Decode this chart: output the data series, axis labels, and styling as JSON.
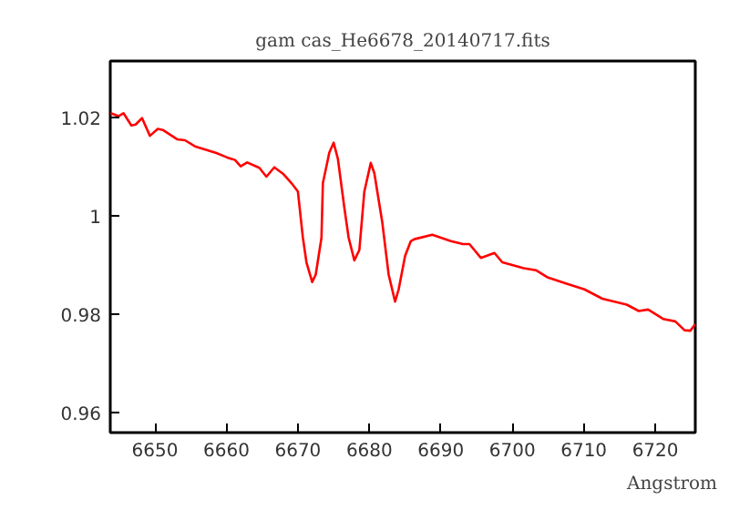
{
  "chart_data": {
    "type": "line",
    "title": "gam cas_He6678_20140717.fits",
    "xlabel": "Angstrom",
    "xlim": [
      6643.75,
      6725.6
    ],
    "ylim": [
      0.956,
      1.0315
    ],
    "xticks": [
      6650,
      6660,
      6670,
      6680,
      6690,
      6700,
      6710,
      6720
    ],
    "yticks": [
      0.96,
      0.98,
      1,
      1.02
    ],
    "grid": false,
    "marker": "none",
    "line_style": "solid",
    "series": [
      {
        "color": "#ff0000",
        "x": [
          6643.8,
          6644.9,
          6645.6,
          6646.7,
          6647.3,
          6648.2,
          6649.3,
          6650.4,
          6651.1,
          6653.1,
          6654.2,
          6655.7,
          6658.6,
          6660.1,
          6661.2,
          6662.0,
          6662.9,
          6664.6,
          6665.6,
          6666.7,
          6668.0,
          6669.1,
          6670.0,
          6670.7,
          6671.2,
          6672.0,
          6672.5,
          6673.3,
          6673.5,
          6674.4,
          6675.0,
          6675.6,
          6676.5,
          6677.1,
          6677.9,
          6678.6,
          6679.3,
          6680.2,
          6680.7,
          6681.8,
          6682.7,
          6683.6,
          6684.1,
          6685.0,
          6685.8,
          6686.3,
          6688.8,
          6691.4,
          6693.1,
          6694.0,
          6695.6,
          6697.5,
          6698.6,
          6701.6,
          6703.3,
          6705.0,
          6707.5,
          6710.1,
          6712.6,
          6716.0,
          6717.7,
          6719.0,
          6721.1,
          6722.8,
          6724.1,
          6724.9,
          6725.6
        ],
        "values": [
          1.0209,
          1.0203,
          1.0209,
          1.0184,
          1.0186,
          1.0199,
          1.0163,
          1.0177,
          1.0175,
          1.0156,
          1.0154,
          1.0141,
          1.0128,
          1.0119,
          1.0114,
          1.0101,
          1.0109,
          1.0098,
          1.008,
          1.0099,
          1.0085,
          1.0067,
          1.005,
          0.9956,
          0.9906,
          0.9866,
          0.9881,
          0.9956,
          1.0067,
          1.0129,
          1.0149,
          1.0116,
          1.0017,
          0.9956,
          0.991,
          0.9931,
          1.005,
          1.0108,
          1.0087,
          0.9988,
          0.9881,
          0.9826,
          0.9851,
          0.9919,
          0.9949,
          0.9953,
          0.9962,
          0.9949,
          0.9943,
          0.9943,
          0.9915,
          0.9925,
          0.9906,
          0.9894,
          0.989,
          0.9875,
          0.9863,
          0.9851,
          0.9832,
          0.982,
          0.9807,
          0.981,
          0.9791,
          0.9786,
          0.9768,
          0.9767,
          0.978
        ]
      }
    ]
  }
}
